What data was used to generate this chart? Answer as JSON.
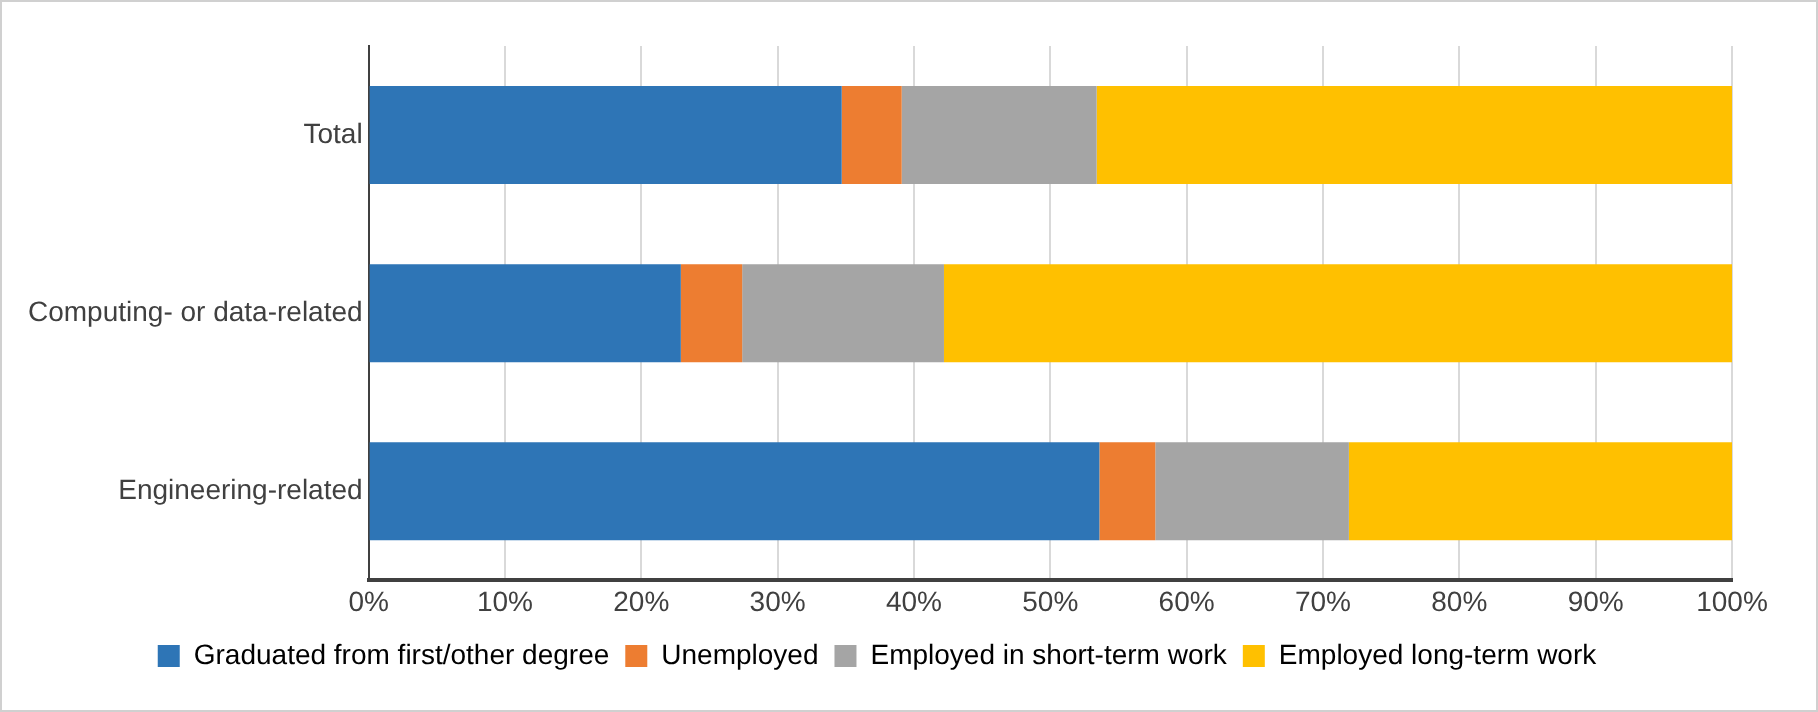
{
  "chart_data": {
    "type": "bar",
    "orientation": "horizontal",
    "stacked": true,
    "categories": [
      "Total",
      "Computing- or data-related",
      "Engineering-related"
    ],
    "series": [
      {
        "name": "Graduated from first/other degree",
        "color": "#2e75b6",
        "values": [
          34.7,
          22.9,
          53.6
        ]
      },
      {
        "name": "Unemployed",
        "color": "#ed7d31",
        "values": [
          4.4,
          4.5,
          4.1
        ]
      },
      {
        "name": "Employed in short-term work",
        "color": "#a5a5a5",
        "values": [
          14.3,
          14.8,
          14.2
        ]
      },
      {
        "name": "Employed long-term work",
        "color": "#ffc000",
        "values": [
          46.6,
          57.8,
          28.1
        ]
      }
    ],
    "xlim": [
      0,
      100
    ],
    "xticks": [
      {
        "value": 0,
        "label": "0%"
      },
      {
        "value": 10,
        "label": "10%"
      },
      {
        "value": 20,
        "label": "20%"
      },
      {
        "value": 30,
        "label": "30%"
      },
      {
        "value": 40,
        "label": "40%"
      },
      {
        "value": 50,
        "label": "50%"
      },
      {
        "value": 60,
        "label": "60%"
      },
      {
        "value": 70,
        "label": "70%"
      },
      {
        "value": 80,
        "label": "80%"
      },
      {
        "value": 90,
        "label": "90%"
      },
      {
        "value": 100,
        "label": "100%"
      }
    ],
    "grid": "x",
    "legend": "bottom"
  }
}
